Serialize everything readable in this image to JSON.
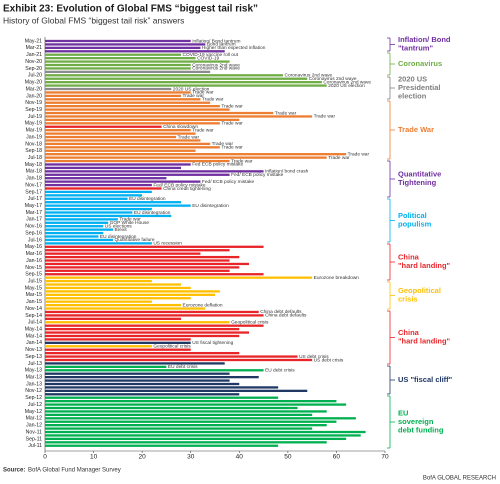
{
  "chart_data": {
    "type": "bar",
    "orientation": "horizontal",
    "title": "Exhibit 23: Evolution of Global FMS “biggest tail risk”",
    "subtitle": "History of Global FMS “biggest tail risk” answers",
    "categories": [
      "May-21",
      null,
      "Mar-21",
      null,
      "Jan-21",
      null,
      "Nov-20",
      null,
      "Sep-20",
      null,
      "Jul-20",
      null,
      "May-20",
      null,
      "Mar-20",
      null,
      "Jan-20",
      null,
      "Nov-19",
      null,
      "Sep-19",
      null,
      "Jul-19",
      null,
      "May-19",
      null,
      "Mar-19",
      null,
      "Jan-19",
      null,
      "Nov-18",
      null,
      "Sep-18",
      null,
      "Jul-18",
      null,
      "May-18",
      null,
      "Mar-18",
      null,
      "Jan-18",
      null,
      "Nov-17",
      null,
      "Sep-17",
      null,
      "Jul-17",
      null,
      "May-17",
      null,
      "Mar-17",
      null,
      "Jan-17",
      null,
      "Nov-16",
      null,
      "Sep-16",
      null,
      "Jul-16",
      null,
      "May-16",
      null,
      "Mar-16",
      null,
      "Jan-16",
      null,
      "Nov-15",
      null,
      "Sep-15",
      null,
      "Jul-15",
      null,
      "May-15",
      null,
      "Mar-15",
      null,
      "Jan-15",
      null,
      "Nov-14",
      null,
      "Sep-14",
      null,
      "Jul-14",
      null,
      "May-14",
      null,
      "Mar-14",
      null,
      "Jan-14",
      null,
      "Nov-13",
      null,
      "Sep-13",
      null,
      "Jul-13",
      null,
      "May-13",
      null,
      "Mar-13",
      null,
      "Jan-13",
      null,
      "Nov-12",
      null,
      "Sep-12",
      null,
      "Jul-12",
      null,
      "May-12",
      null,
      "Mar-12",
      null,
      "Jan-12",
      null,
      "Nov-11",
      null,
      "Sep-11",
      null,
      "Jul-11"
    ],
    "values": [
      30,
      33,
      32,
      37,
      28,
      31,
      38,
      30,
      30,
      34,
      49,
      54,
      57,
      58,
      26,
      30,
      28,
      32,
      34,
      36,
      38,
      47,
      55,
      40,
      36,
      24,
      30,
      31,
      27,
      32,
      34,
      36,
      31,
      62,
      58,
      38,
      30,
      28,
      45,
      38,
      25,
      32,
      22,
      24,
      22,
      20,
      17,
      28,
      30,
      22,
      18,
      26,
      15,
      13,
      12,
      14,
      12,
      11,
      14,
      22,
      45,
      38,
      32,
      40,
      38,
      42,
      40,
      38,
      45,
      55,
      22,
      28,
      30,
      36,
      35,
      30,
      22,
      28,
      33,
      44,
      45,
      28,
      38,
      45,
      40,
      42,
      40,
      30,
      30,
      22,
      30,
      40,
      52,
      55,
      37,
      25,
      45,
      38,
      44,
      38,
      40,
      48,
      54,
      40,
      48,
      60,
      62,
      52,
      58,
      55,
      64,
      60,
      58,
      55,
      66,
      65,
      62,
      58,
      48
    ],
    "colors": [
      "#7030a0",
      "#7030a0",
      "#7030a0",
      "#7030a0",
      "#70ad47",
      "#70ad47",
      "#70ad47",
      "#70ad47",
      "#70ad47",
      "#8c8c8c",
      "#70ad47",
      "#70ad47",
      "#70ad47",
      "#70ad47",
      "#8c8c8c",
      "#ed7d31",
      "#ed7d31",
      "#ed7d31",
      "#ed7d31",
      "#ed7d31",
      "#ed7d31",
      "#ed7d31",
      "#ed7d31",
      "#ed7d31",
      "#ed7d31",
      "#e8262a",
      "#ed7d31",
      "#ed7d31",
      "#ed7d31",
      "#ed7d31",
      "#ed7d31",
      "#ed7d31",
      "#ed7d31",
      "#ed7d31",
      "#ed7d31",
      "#ed7d31",
      "#7030a0",
      "#7030a0",
      "#7030a0",
      "#7030a0",
      "#7030a0",
      "#7030a0",
      "#7030a0",
      "#e8262a",
      "#00b0f0",
      "#00b0f0",
      "#00b0f0",
      "#00b0f0",
      "#00b0f0",
      "#00b0f0",
      "#00b0f0",
      "#00b0f0",
      "#00b0f0",
      "#00b0f0",
      "#00b0f0",
      "#00b0f0",
      "#00b0f0",
      "#00b0f0",
      "#00b0f0",
      "#00b0f0",
      "#e8262a",
      "#e8262a",
      "#e8262a",
      "#e8262a",
      "#e8262a",
      "#e8262a",
      "#e8262a",
      "#e8262a",
      "#e8262a",
      "#ffc000",
      "#ffc000",
      "#ffc000",
      "#ffc000",
      "#ffc000",
      "#ffc000",
      "#ffc000",
      "#ffc000",
      "#ffc000",
      "#ffc000",
      "#e8262a",
      "#e8262a",
      "#e8262a",
      "#ffc000",
      "#e8262a",
      "#e8262a",
      "#e8262a",
      "#e8262a",
      "#e8262a",
      "#203864",
      "#ffc000",
      "#e8262a",
      "#e8262a",
      "#e8262a",
      "#e8262a",
      "#203864",
      "#00b050",
      "#00b050",
      "#203864",
      "#203864",
      "#203864",
      "#203864",
      "#203864",
      "#203864",
      "#203864",
      "#00b050",
      "#00b050",
      "#00b050",
      "#00b050",
      "#00b050",
      "#00b050",
      "#00b050",
      "#00b050",
      "#00b050",
      "#00b050",
      "#00b050",
      "#00b050",
      "#00b050",
      "#00b050",
      "#00b050"
    ],
    "bar_labels": [
      "Inflation/ Bond tantrum",
      "Bond tantrum",
      "Higher than expected inflation",
      null,
      "COVID-19 vaccine roll out",
      "COVID-19",
      null,
      "Coronavirus 2nd wave",
      "Coronavirus 2nd wave",
      null,
      "Coronavirus 2nd wave",
      "Coronavirus 2nd wave",
      "Coronavirus 2nd wave",
      "2020 US election",
      "2020 US election",
      "Trade war",
      "Trade war",
      "Trade war",
      null,
      "Trade war",
      null,
      "Trade war",
      "Trade war",
      null,
      "Trade war",
      "China slowdown",
      "Trade war",
      null,
      "Trade war",
      null,
      "Trade war",
      "Trade war",
      null,
      "Trade war",
      "Trade war",
      "Trade war",
      "Fed ECB policy mistake",
      null,
      "Inflation/ bond crash",
      "Fed/ ECB policy mistake",
      null,
      "Fed/ ECB policy mistake",
      "Fed/ ECB policy mistake",
      "China credit tightening",
      null,
      null,
      "EU disintegration",
      null,
      "EU disintegration",
      null,
      "EU disintegration",
      null,
      "Trade war",
      "GOP White House",
      "US elections",
      "Brexit",
      null,
      "EU disintegration",
      "Quantitative failure",
      "US recession",
      null,
      null,
      null,
      null,
      null,
      null,
      null,
      null,
      null,
      "Eurozone breakdown",
      null,
      null,
      null,
      null,
      null,
      null,
      null,
      "Eurozone deflation",
      null,
      "China debt defaults",
      "China debt defaults",
      null,
      "Geopolitical crisis",
      null,
      null,
      null,
      null,
      null,
      "US fiscal tightening",
      "Geopolitical crisis",
      null,
      null,
      "US debt crisis",
      "US debt crisis",
      null,
      "EU debt crisis",
      "EU debt crisis",
      null,
      null,
      null,
      null,
      null,
      null,
      null,
      null,
      null,
      null,
      null,
      null,
      null,
      null,
      null,
      null,
      null,
      null,
      null,
      null,
      null,
      null
    ],
    "xlim": [
      0,
      70
    ],
    "xticks": [
      0,
      10,
      20,
      30,
      40,
      50,
      60,
      70
    ],
    "groups": [
      {
        "lines": [
          "Inflation/ Bond",
          "\"tantrum\""
        ],
        "color": "#7030a0"
      },
      {
        "lines": [
          "Coronavirus"
        ],
        "color": "#70ad47"
      },
      {
        "lines": [
          "2020 US",
          "Presidential",
          "election"
        ],
        "color": "#7f7f7f"
      },
      {
        "lines": [
          "Trade War"
        ],
        "color": "#ed7d31"
      },
      {
        "lines": [
          "Quantitative",
          "Tightening"
        ],
        "color": "#7030a0"
      },
      {
        "lines": [
          "Political",
          "populism"
        ],
        "color": "#00b0f0"
      },
      {
        "lines": [
          "China",
          "\"hard landing\""
        ],
        "color": "#e8262a"
      },
      {
        "lines": [
          "Geopolitical",
          "crisis"
        ],
        "color": "#ffc000"
      },
      {
        "lines": [
          "China",
          "\"hard landing\""
        ],
        "color": "#e8262a"
      },
      {
        "lines": [
          "US \"fiscal cliff\""
        ],
        "color": "#203864"
      },
      {
        "lines": [
          "EU",
          "sovereign",
          "debt funding"
        ],
        "color": "#00b050"
      }
    ],
    "source_label": "Source:",
    "source": "BofA Global Fund Manager Survey",
    "footer": "BofA GLOBAL RESEARCH"
  }
}
